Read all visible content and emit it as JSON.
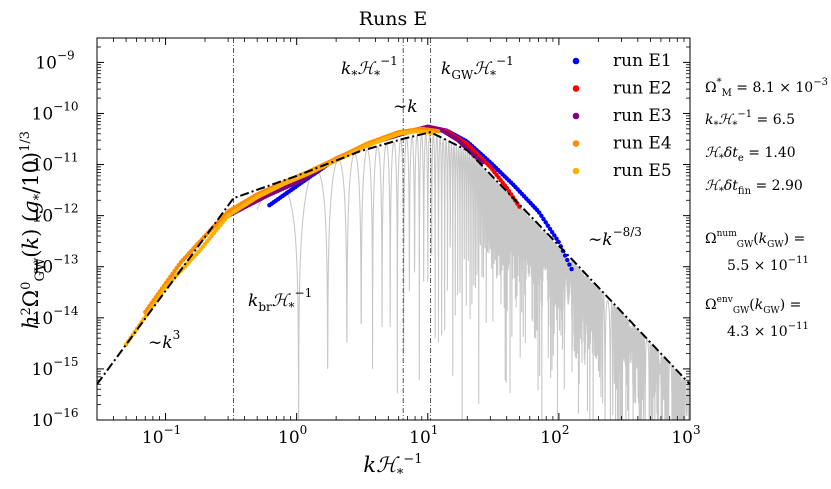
{
  "chart_data": {
    "type": "line",
    "title": "Runs E",
    "xlabel": "kℋ*⁻¹",
    "ylabel": "h²Ω⁰GW(k) (g*/10)^1/3",
    "x_scale": "log",
    "y_scale": "log",
    "xlim": [
      0.03,
      1000
    ],
    "ylim": [
      1e-16,
      3e-09
    ],
    "x_ticks": [
      {
        "value": 0.1,
        "base": "10",
        "exp": "−1"
      },
      {
        "value": 1,
        "base": "10",
        "exp": "0"
      },
      {
        "value": 10,
        "base": "10",
        "exp": "1"
      },
      {
        "value": 100,
        "base": "10",
        "exp": "2"
      },
      {
        "value": 1000,
        "base": "10",
        "exp": "3"
      }
    ],
    "y_ticks": [
      {
        "value": 1e-09,
        "base": "10",
        "exp": "−9"
      },
      {
        "value": 1e-10,
        "base": "10",
        "exp": "−10"
      },
      {
        "value": 1e-11,
        "base": "10",
        "exp": "−11"
      },
      {
        "value": 1e-12,
        "base": "10",
        "exp": "−12"
      },
      {
        "value": 1e-13,
        "base": "10",
        "exp": "−13"
      },
      {
        "value": 1e-14,
        "base": "10",
        "exp": "−14"
      },
      {
        "value": 1e-15,
        "base": "10",
        "exp": "−15"
      },
      {
        "value": 1e-16,
        "base": "10",
        "exp": "−16"
      }
    ],
    "vlines": [
      {
        "x": 0.33,
        "label": "kbrℋ*⁻¹"
      },
      {
        "x": 6.5,
        "label": "k*ℋ*⁻¹"
      },
      {
        "x": 10.5,
        "label": "kGWℋ*⁻¹"
      }
    ],
    "envelope": {
      "x": [
        0.03,
        0.33,
        1,
        3,
        6.5,
        10.5,
        20,
        100,
        1000
      ],
      "y": [
        5e-16,
        2.2e-12,
        6e-12,
        1.8e-11,
        3.2e-11,
        4.3e-11,
        1.9e-11,
        2.6e-13,
        5e-16
      ]
    },
    "series": [
      {
        "name": "run E1",
        "color": "#0000ff",
        "x": [
          0.62,
          1.1,
          2,
          4,
          7,
          10,
          14,
          20,
          30,
          45,
          70,
          100,
          125
        ],
        "y": [
          1.6e-12,
          4.5e-12,
          1.3e-11,
          2.8e-11,
          4.3e-11,
          5.5e-11,
          4.6e-11,
          2.8e-11,
          1.1e-11,
          4e-12,
          1.2e-12,
          3e-13,
          9e-14
        ]
      },
      {
        "name": "run E2",
        "color": "#ff0000",
        "x": [
          0.3,
          0.6,
          1.1,
          2,
          4,
          7,
          10,
          14,
          20,
          30,
          40,
          50
        ],
        "y": [
          1e-12,
          2.5e-12,
          5e-12,
          1.3e-11,
          2.8e-11,
          4.3e-11,
          5.5e-11,
          4.5e-11,
          2.5e-11,
          9e-12,
          3.5e-12,
          1.5e-12
        ]
      },
      {
        "name": "run E3",
        "color": "#800080",
        "x": [
          0.3,
          0.6,
          1.1,
          2,
          4,
          7,
          10,
          13,
          17,
          22,
          26
        ],
        "y": [
          1e-12,
          2.5e-12,
          5e-12,
          1.3e-11,
          2.8e-11,
          4.3e-11,
          5.4e-11,
          4.6e-11,
          3e-11,
          1.6e-11,
          1.1e-11
        ]
      },
      {
        "name": "run E4",
        "color": "#ff8c00",
        "x": [
          0.07,
          0.13,
          0.2,
          0.3,
          0.5,
          0.8,
          1.2,
          2,
          3.5,
          6,
          9,
          12
        ],
        "y": [
          1.3e-14,
          1.2e-13,
          4e-13,
          1.2e-12,
          2.6e-12,
          4.5e-12,
          7e-12,
          1.3e-11,
          2.6e-11,
          4.3e-11,
          5e-11,
          4.5e-11
        ]
      },
      {
        "name": "run E5",
        "color": "#ffb000",
        "x": [
          0.05,
          0.1,
          0.18,
          0.3,
          0.5,
          0.8,
          1.2,
          2,
          3.5,
          6,
          8,
          11
        ],
        "y": [
          3e-15,
          4e-14,
          2e-13,
          1e-12,
          2.3e-12,
          4.2e-12,
          6.5e-12,
          1.2e-11,
          2.4e-11,
          4e-11,
          4.5e-11,
          4.2e-11
        ]
      }
    ],
    "annotations": [
      {
        "text": "~k³"
      },
      {
        "text": "~k"
      },
      {
        "text": "~k⁻⁸ᐟ³"
      }
    ],
    "legend_position": "top-right",
    "parameters": [
      {
        "sym": "Ω*M",
        "value": "= 8.1 × 10⁻³"
      },
      {
        "sym": "k*ℋ*⁻¹",
        "value": "= 6.5"
      },
      {
        "sym": "ℋ*δte",
        "value": "= 1.40"
      },
      {
        "sym": "ℋ*δtfin",
        "value": "= 2.90"
      },
      {
        "sym": "ΩnumGW(kGW)",
        "value": "="
      },
      {
        "sym": "",
        "value": "5.5 × 10⁻¹¹"
      },
      {
        "sym": "ΩenvGW(kGW)",
        "value": "="
      },
      {
        "sym": "",
        "value": "4.3 × 10⁻¹¹"
      }
    ],
    "grid": false
  }
}
